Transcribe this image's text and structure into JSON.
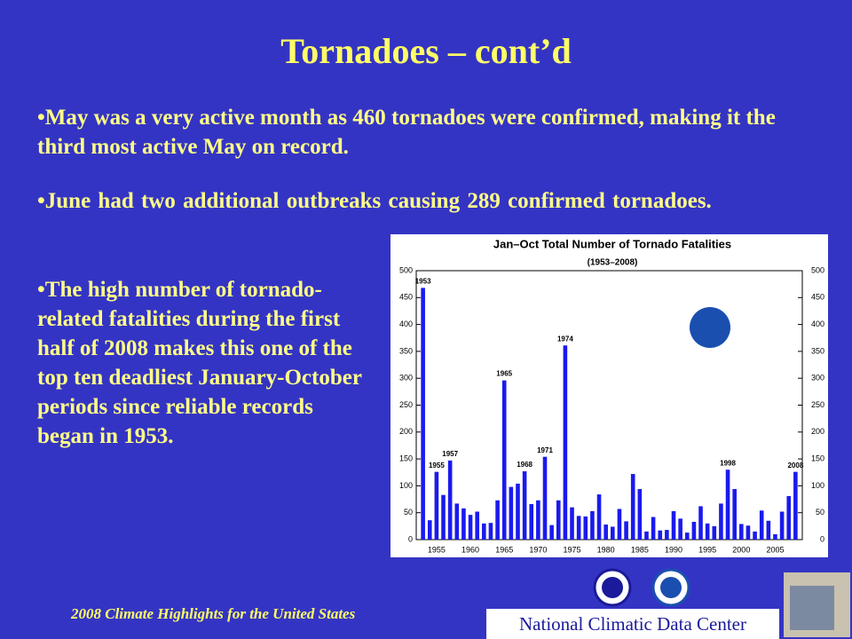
{
  "slide": {
    "title": "Tornadoes – cont’d",
    "bullets": [
      "May was a very active month as 460 tornadoes were confirmed, making it the third most active May on record.",
      "June had two additional outbreaks causing 289 confirmed tornadoes.",
      "The high number of tornado-related fatalities during the first half of 2008 makes this one of the top ten deadliest January-October periods since reliable records began in 1953."
    ],
    "footer": "2008 Climate Highlights for the United States",
    "organization": "National Climatic Data Center"
  },
  "chart_data": {
    "type": "bar",
    "title": "Jan–Oct Total Number of Tornado Fatalities",
    "subtitle": "(1953–2008)",
    "color": "#1a1aee",
    "x": [
      1953,
      1954,
      1955,
      1956,
      1957,
      1958,
      1959,
      1960,
      1961,
      1962,
      1963,
      1964,
      1965,
      1966,
      1967,
      1968,
      1969,
      1970,
      1971,
      1972,
      1973,
      1974,
      1975,
      1976,
      1977,
      1978,
      1979,
      1980,
      1981,
      1982,
      1983,
      1984,
      1985,
      1986,
      1987,
      1988,
      1989,
      1990,
      1991,
      1992,
      1993,
      1994,
      1995,
      1996,
      1997,
      1998,
      1999,
      2000,
      2001,
      2002,
      2003,
      2004,
      2005,
      2006,
      2007,
      2008
    ],
    "values": [
      468,
      36,
      126,
      83,
      147,
      67,
      58,
      46,
      52,
      30,
      31,
      73,
      296,
      98,
      104,
      127,
      66,
      73,
      154,
      27,
      73,
      361,
      60,
      44,
      43,
      53,
      84,
      28,
      24,
      57,
      34,
      122,
      94,
      15,
      42,
      17,
      18,
      53,
      39,
      13,
      33,
      62,
      30,
      25,
      67,
      130,
      94,
      29,
      26,
      15,
      54,
      35,
      10,
      52,
      81,
      126
    ],
    "xlim": [
      1952,
      2009
    ],
    "xticks": [
      1955,
      1960,
      1965,
      1970,
      1975,
      1980,
      1985,
      1990,
      1995,
      2000,
      2005
    ],
    "ylim": [
      0,
      500
    ],
    "yticks": [
      0,
      50,
      100,
      150,
      200,
      250,
      300,
      350,
      400,
      450,
      500
    ],
    "y2lim": [
      0,
      500
    ],
    "y2ticks": [
      0,
      50,
      100,
      150,
      200,
      250,
      300,
      350,
      400,
      450,
      500
    ],
    "annotations": [
      {
        "text": "1953",
        "x": 1953
      },
      {
        "text": "1955",
        "x": 1955
      },
      {
        "text": "1957",
        "x": 1957
      },
      {
        "text": "1965",
        "x": 1965
      },
      {
        "text": "1968",
        "x": 1968
      },
      {
        "text": "1971",
        "x": 1971
      },
      {
        "text": "1974",
        "x": 1974
      },
      {
        "text": "1998",
        "x": 1998
      },
      {
        "text": "2008",
        "x": 2008
      }
    ]
  }
}
